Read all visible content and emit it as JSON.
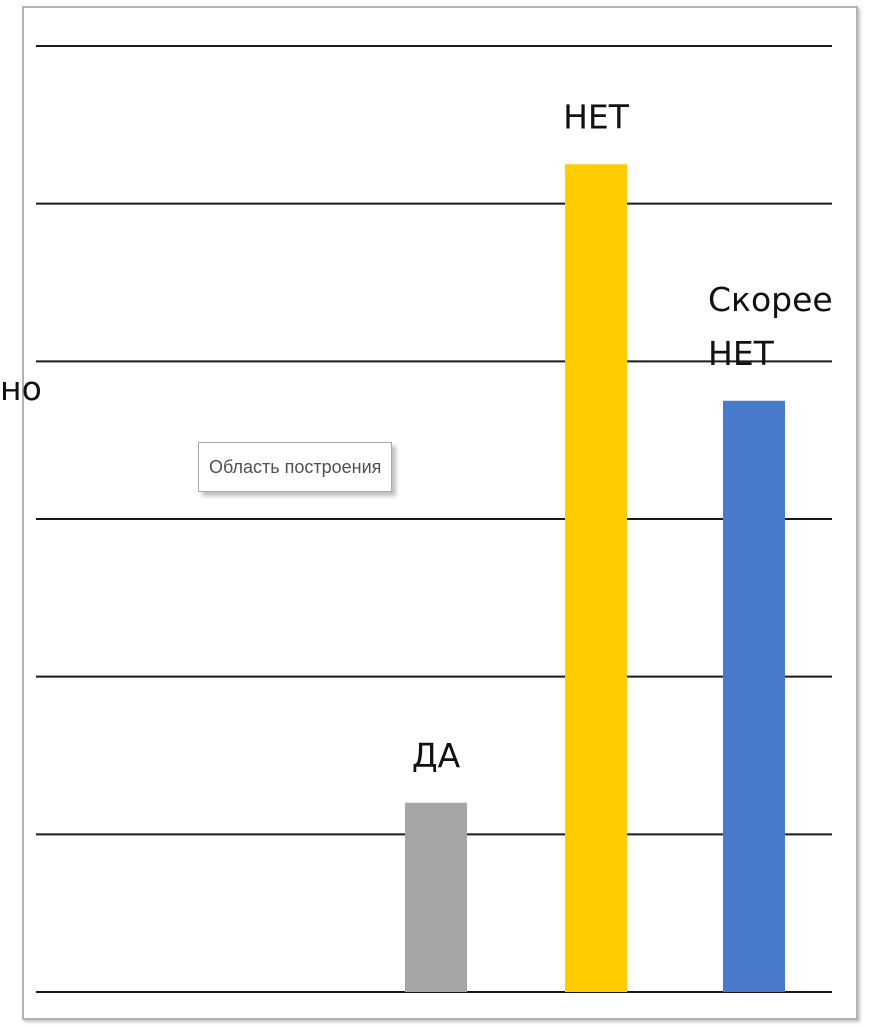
{
  "chart_data": {
    "type": "bar",
    "categories": [
      "ДА",
      "НЕТ",
      "Скорее НЕТ"
    ],
    "category_label_lines": [
      [
        "ДА"
      ],
      [
        "НЕТ"
      ],
      [
        "Скорее",
        "НЕТ"
      ]
    ],
    "values": [
      1.6,
      7.0,
      5.0
    ],
    "ylim": [
      0,
      8
    ],
    "grid": true,
    "colors": [
      "#a5a5a5",
      "#ffcc00",
      "#4a7acc"
    ],
    "title": "",
    "xlabel": "",
    "ylabel": ""
  },
  "cut_label": "но",
  "tooltip": {
    "text": "Область построения"
  }
}
